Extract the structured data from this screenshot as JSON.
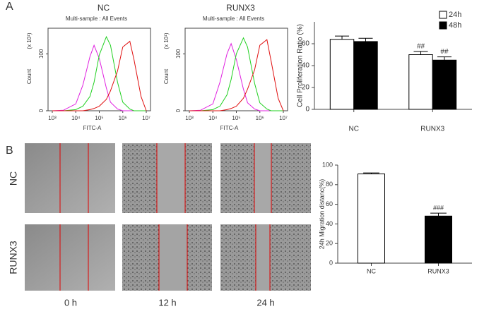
{
  "figure": {
    "panel_a": "A",
    "panel_b": "B",
    "row_labels": [
      "NC",
      "RUNX3"
    ],
    "column_labels": [
      "0 h",
      "12 h",
      "24 h"
    ]
  },
  "chart_data": [
    {
      "type": "line",
      "title": "NC",
      "subtitle": "Multi-sample : All Events",
      "y_label": "Count",
      "y_unit": "(x 10¹)",
      "x_label": "FITC-A",
      "xscale": "log",
      "x": [
        1000,
        3000,
        10000,
        20000,
        40000,
        60000,
        100000,
        200000,
        300000,
        600000,
        1000000,
        2000000,
        3000000,
        6000000,
        10000000
      ],
      "xlim": [
        1000,
        10000000
      ],
      "xticks": [
        {
          "value": 1000,
          "label": "10³"
        },
        {
          "value": 10000,
          "label": "10⁴"
        },
        {
          "value": 100000,
          "label": "10⁵"
        },
        {
          "value": 1000000,
          "label": "10⁶"
        },
        {
          "value": 10000000,
          "label": "10⁷"
        }
      ],
      "ylim": [
        0,
        145
      ],
      "yticks": [
        0,
        100
      ],
      "series": [
        {
          "color": "#e020e0",
          "values": [
            0,
            1,
            12,
            45,
            95,
            115,
            92,
            40,
            15,
            3,
            0,
            0,
            0,
            0,
            0
          ]
        },
        {
          "color": "#20d020",
          "values": [
            0,
            0,
            2,
            8,
            25,
            50,
            98,
            130,
            115,
            50,
            15,
            3,
            0,
            0,
            0
          ]
        },
        {
          "color": "#e01010",
          "values": [
            0,
            0,
            0,
            0,
            2,
            4,
            8,
            20,
            35,
            70,
            112,
            122,
            90,
            25,
            0
          ]
        }
      ]
    },
    {
      "type": "line",
      "title": "RUNX3",
      "subtitle": "Multi-sample : All Events",
      "y_label": "Count",
      "y_unit": "(x 10¹)",
      "x_label": "FITC-A",
      "xscale": "log",
      "x": [
        1000,
        3000,
        10000,
        20000,
        40000,
        60000,
        100000,
        200000,
        300000,
        600000,
        1000000,
        2000000,
        3000000,
        6000000,
        10000000
      ],
      "xlim": [
        1000,
        10000000
      ],
      "xticks": [
        {
          "value": 1000,
          "label": "10³"
        },
        {
          "value": 10000,
          "label": "10⁴"
        },
        {
          "value": 100000,
          "label": "10⁵"
        },
        {
          "value": 1000000,
          "label": "10⁶"
        },
        {
          "value": 10000000,
          "label": "10⁷"
        }
      ],
      "ylim": [
        0,
        145
      ],
      "yticks": [
        0,
        100
      ],
      "series": [
        {
          "color": "#e020e0",
          "values": [
            0,
            1,
            12,
            50,
            100,
            118,
            90,
            38,
            14,
            3,
            0,
            0,
            0,
            0,
            0
          ]
        },
        {
          "color": "#20d020",
          "values": [
            0,
            0,
            2,
            8,
            28,
            55,
            100,
            128,
            112,
            48,
            14,
            3,
            0,
            0,
            0
          ]
        },
        {
          "color": "#e01010",
          "values": [
            0,
            0,
            0,
            0,
            2,
            4,
            8,
            22,
            38,
            72,
            115,
            125,
            88,
            22,
            0
          ]
        }
      ]
    },
    {
      "type": "bar",
      "y_label": "Cell Proliferation Ratio (%)",
      "categories": [
        "NC",
        "RUNX3"
      ],
      "ylim": [
        0,
        80
      ],
      "yticks": [
        0,
        20,
        40,
        60
      ],
      "legend": "top-right",
      "series": [
        {
          "name": "24h",
          "color": "#ffffff",
          "values": [
            64,
            50
          ],
          "errors": [
            3,
            3
          ],
          "annotations": [
            null,
            "##"
          ]
        },
        {
          "name": "48h",
          "color": "#000000",
          "values": [
            62,
            45
          ],
          "errors": [
            3,
            3
          ],
          "annotations": [
            null,
            "##"
          ]
        }
      ]
    },
    {
      "type": "bar",
      "y_label": "24h Migration distanc(%)",
      "categories": [
        "NC",
        "RUNX3"
      ],
      "ylim": [
        0,
        100
      ],
      "yticks": [
        0,
        20,
        40,
        60,
        80,
        100
      ],
      "series": [
        {
          "color": "#ffffff",
          "values": [
            91,
            48
          ],
          "errors": [
            1,
            3
          ],
          "annotations": [
            null,
            "###"
          ]
        },
        {
          "color": "#000000",
          "values": [
            91,
            48
          ],
          "errors": [
            1,
            3
          ],
          "annotations": [
            null,
            "###"
          ]
        }
      ]
    }
  ]
}
